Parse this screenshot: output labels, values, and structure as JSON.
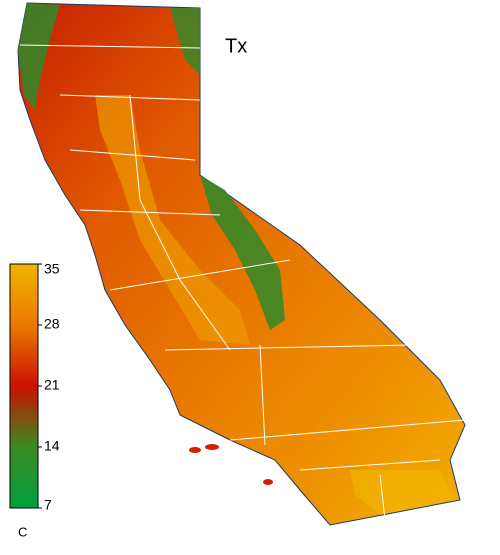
{
  "map": {
    "title": "Tx",
    "colorbar": {
      "ticks": [
        35,
        28,
        21,
        14,
        7
      ],
      "colors": [
        "#f0b400",
        "#ea7a00",
        "#cc1000",
        "#3a8a20",
        "#00a040"
      ],
      "unit": "C"
    }
  }
}
